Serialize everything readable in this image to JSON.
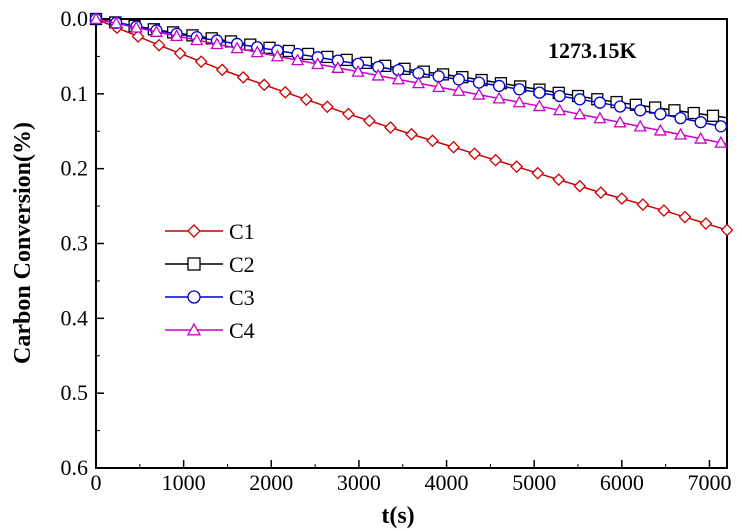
{
  "chart_data": {
    "type": "line",
    "title": "",
    "annotation": "1273.15K",
    "xlabel": "t(s)",
    "ylabel": "Carbon Conversion(%)",
    "xlim": [
      0,
      7200
    ],
    "ylim": [
      0.0,
      0.6
    ],
    "y_inverted": true,
    "x_ticks": [
      0,
      1000,
      2000,
      3000,
      4000,
      5000,
      6000,
      7000
    ],
    "x_tick_labels": [
      "0",
      "1000",
      "2000",
      "3000",
      "4000",
      "5000",
      "6000",
      "7000"
    ],
    "y_ticks": [
      0.0,
      0.1,
      0.2,
      0.3,
      0.4,
      0.5,
      0.6
    ],
    "y_tick_labels": [
      "0.0",
      "0.1",
      "0.2",
      "0.3",
      "0.4",
      "0.5",
      "0.6"
    ],
    "grid": false,
    "legend_position": "middle-left",
    "series": [
      {
        "name": "C1",
        "color": "#cc0000",
        "marker": "diamond",
        "x": [
          0,
          720,
          1440,
          2160,
          2880,
          3600,
          4320,
          5040,
          5760,
          6480,
          7200
        ],
        "y": [
          0.0,
          0.035,
          0.068,
          0.098,
          0.127,
          0.154,
          0.18,
          0.206,
          0.232,
          0.256,
          0.282
        ]
      },
      {
        "name": "C2",
        "color": "#000000",
        "marker": "square",
        "x": [
          0,
          720,
          1440,
          2160,
          2880,
          3600,
          4320,
          5040,
          5760,
          6480,
          7200
        ],
        "y": [
          0.0,
          0.015,
          0.028,
          0.042,
          0.055,
          0.068,
          0.08,
          0.094,
          0.108,
          0.12,
          0.132
        ]
      },
      {
        "name": "C3",
        "color": "#0000cc",
        "marker": "circle",
        "x": [
          0,
          720,
          1440,
          2160,
          2880,
          3600,
          4320,
          5040,
          5760,
          6480,
          7200
        ],
        "y": [
          0.0,
          0.016,
          0.03,
          0.044,
          0.058,
          0.071,
          0.084,
          0.098,
          0.112,
          0.128,
          0.145
        ]
      },
      {
        "name": "C4",
        "color": "#cc00cc",
        "marker": "triangle",
        "x": [
          0,
          720,
          1440,
          2160,
          2880,
          3600,
          4320,
          5040,
          5760,
          6480,
          7200
        ],
        "y": [
          0.0,
          0.018,
          0.035,
          0.052,
          0.068,
          0.084,
          0.1,
          0.116,
          0.133,
          0.15,
          0.167
        ]
      }
    ]
  }
}
